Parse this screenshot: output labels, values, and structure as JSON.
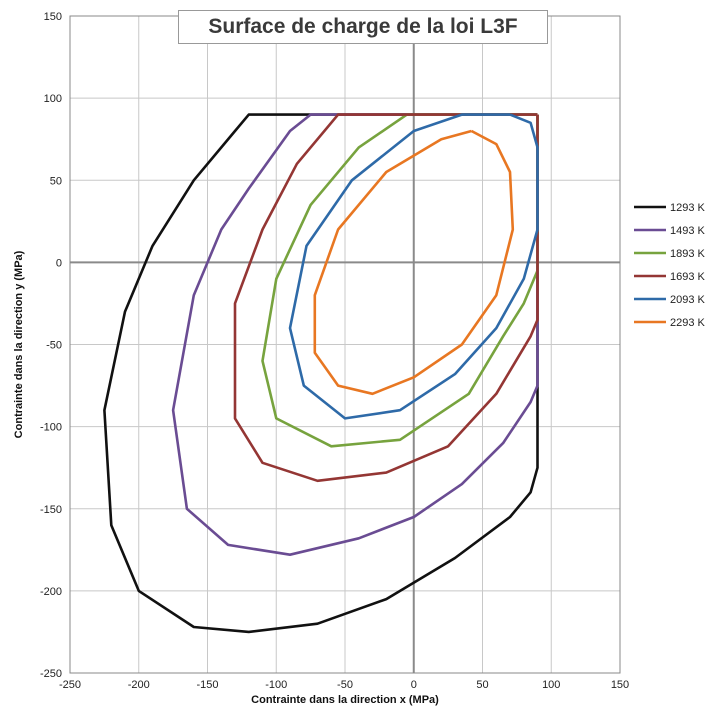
{
  "chart_data": {
    "type": "line",
    "title": "Surface de charge de la loi L3F",
    "xlabel": "Contrainte dans la direction x (MPa)",
    "ylabel": "Contrainte dans la direction y (MPa)",
    "xlim": [
      -250,
      150
    ],
    "ylim": [
      -250,
      150
    ],
    "xticks": [
      -250,
      -200,
      -150,
      -100,
      -50,
      0,
      50,
      100,
      150
    ],
    "yticks": [
      -250,
      -200,
      -150,
      -100,
      -50,
      0,
      50,
      100,
      150
    ],
    "grid": true,
    "legend_position": "right",
    "series": [
      {
        "name": "1293 K",
        "color": "#111111",
        "points": [
          [
            90,
            90
          ],
          [
            -120,
            90
          ],
          [
            -130,
            80
          ],
          [
            -160,
            50
          ],
          [
            -190,
            10
          ],
          [
            -210,
            -30
          ],
          [
            -225,
            -90
          ],
          [
            -220,
            -160
          ],
          [
            -200,
            -200
          ],
          [
            -160,
            -222
          ],
          [
            -120,
            -225
          ],
          [
            -70,
            -220
          ],
          [
            -20,
            -205
          ],
          [
            30,
            -180
          ],
          [
            70,
            -155
          ],
          [
            85,
            -140
          ],
          [
            90,
            -125
          ],
          [
            90,
            -90
          ],
          [
            90,
            90
          ]
        ]
      },
      {
        "name": "1493 K",
        "color": "#6a4c93",
        "points": [
          [
            90,
            90
          ],
          [
            -75,
            90
          ],
          [
            -90,
            80
          ],
          [
            -120,
            45
          ],
          [
            -140,
            20
          ],
          [
            -160,
            -20
          ],
          [
            -175,
            -90
          ],
          [
            -165,
            -150
          ],
          [
            -135,
            -172
          ],
          [
            -90,
            -178
          ],
          [
            -40,
            -168
          ],
          [
            0,
            -155
          ],
          [
            35,
            -135
          ],
          [
            65,
            -110
          ],
          [
            85,
            -85
          ],
          [
            90,
            -75
          ],
          [
            90,
            0
          ],
          [
            90,
            90
          ]
        ]
      },
      {
        "name": "1893 K",
        "color": "#77a33e",
        "points": [
          [
            90,
            90
          ],
          [
            -5,
            90
          ],
          [
            -40,
            70
          ],
          [
            -75,
            35
          ],
          [
            -100,
            -10
          ],
          [
            -110,
            -60
          ],
          [
            -100,
            -95
          ],
          [
            -60,
            -112
          ],
          [
            -10,
            -108
          ],
          [
            40,
            -80
          ],
          [
            65,
            -45
          ],
          [
            80,
            -25
          ],
          [
            90,
            -5
          ],
          [
            90,
            70
          ],
          [
            90,
            90
          ]
        ]
      },
      {
        "name": "1693 K",
        "color": "#943634",
        "points": [
          [
            90,
            90
          ],
          [
            -55,
            90
          ],
          [
            -85,
            60
          ],
          [
            -110,
            20
          ],
          [
            -130,
            -25
          ],
          [
            -130,
            -95
          ],
          [
            -110,
            -122
          ],
          [
            -70,
            -133
          ],
          [
            -20,
            -128
          ],
          [
            25,
            -112
          ],
          [
            60,
            -80
          ],
          [
            85,
            -45
          ],
          [
            90,
            -35
          ],
          [
            90,
            90
          ]
        ]
      },
      {
        "name": "2093 K",
        "color": "#2e6aa8",
        "points": [
          [
            70,
            90
          ],
          [
            35,
            90
          ],
          [
            0,
            80
          ],
          [
            -45,
            50
          ],
          [
            -78,
            10
          ],
          [
            -90,
            -40
          ],
          [
            -80,
            -75
          ],
          [
            -50,
            -95
          ],
          [
            -10,
            -90
          ],
          [
            30,
            -68
          ],
          [
            60,
            -40
          ],
          [
            80,
            -10
          ],
          [
            90,
            20
          ],
          [
            90,
            70
          ],
          [
            85,
            85
          ],
          [
            70,
            90
          ]
        ]
      },
      {
        "name": "2293 K",
        "color": "#e87722",
        "points": [
          [
            42,
            80
          ],
          [
            20,
            75
          ],
          [
            -20,
            55
          ],
          [
            -55,
            20
          ],
          [
            -72,
            -20
          ],
          [
            -72,
            -55
          ],
          [
            -55,
            -75
          ],
          [
            -30,
            -80
          ],
          [
            0,
            -70
          ],
          [
            35,
            -50
          ],
          [
            60,
            -20
          ],
          [
            72,
            20
          ],
          [
            70,
            55
          ],
          [
            60,
            72
          ],
          [
            42,
            80
          ]
        ]
      }
    ]
  }
}
